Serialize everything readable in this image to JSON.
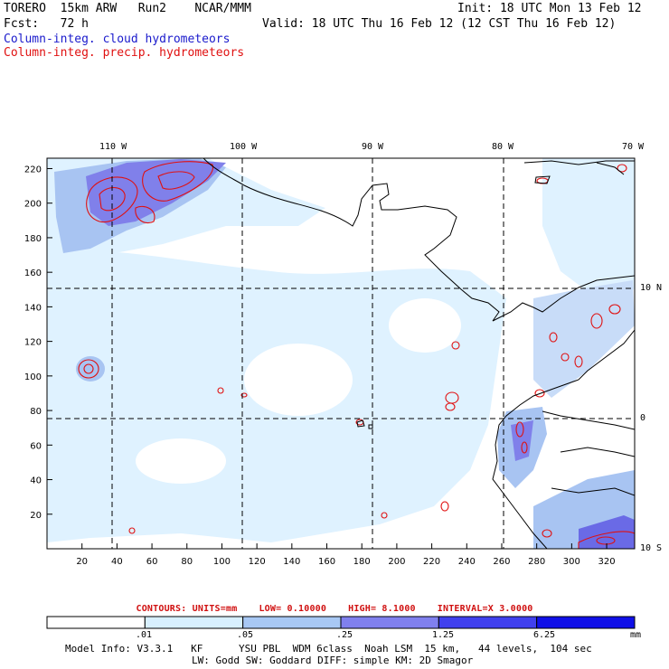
{
  "header": {
    "model": "TORERO  15km ARW   Run2    NCAR/MMM",
    "init": "Init: 18 UTC Mon 13 Feb 12",
    "forecast": "Fcst:   72 h",
    "valid": "Valid: 18 UTC Thu 16 Feb 12 (12 CST Thu 16 Feb 12)",
    "field1": "Column-integ. cloud hydrometeors",
    "field2": "Column-integ. precip. hydrometeors"
  },
  "map": {
    "lon_labels": [
      "110 W",
      "100 W",
      "90 W",
      "80 W",
      "70 W"
    ],
    "lat_labels": [
      "10 N",
      "0",
      "10 S"
    ],
    "x_ticks": [
      "20",
      "40",
      "60",
      "80",
      "100",
      "120",
      "140",
      "160",
      "180",
      "200",
      "220",
      "240",
      "260",
      "280",
      "300",
      "320"
    ],
    "y_ticks": [
      "20",
      "40",
      "60",
      "80",
      "100",
      "120",
      "140",
      "160",
      "180",
      "200",
      "220"
    ],
    "x_range": [
      0,
      336
    ],
    "y_range": [
      0,
      226
    ],
    "colors": {
      "land_line": "#000000",
      "grid_line": "#000000",
      "precip_contour": "#e01010"
    }
  },
  "contours": {
    "units": "CONTOURS:  UNITS=mm",
    "low": "LOW= 0.10000",
    "high": "HIGH=  8.1000",
    "interval": "INTERVAL=X  3.0000"
  },
  "colorbar": {
    "unit": "mm",
    "labels": [
      ".01",
      ".05",
      ".25",
      "1.25",
      "6.25"
    ],
    "colors": [
      "#ffffff",
      "#d8f0ff",
      "#a8c8f4",
      "#8080ee",
      "#4040ee",
      "#1010e8"
    ]
  },
  "footer": {
    "line1": "Model Info: V3.3.1   KF      YSU PBL  WDM 6class  Noah LSM  15 km,   44 levels,  104 sec",
    "line2": "LW: Godd SW: Goddard DIFF: simple KM: 2D Smagor"
  }
}
